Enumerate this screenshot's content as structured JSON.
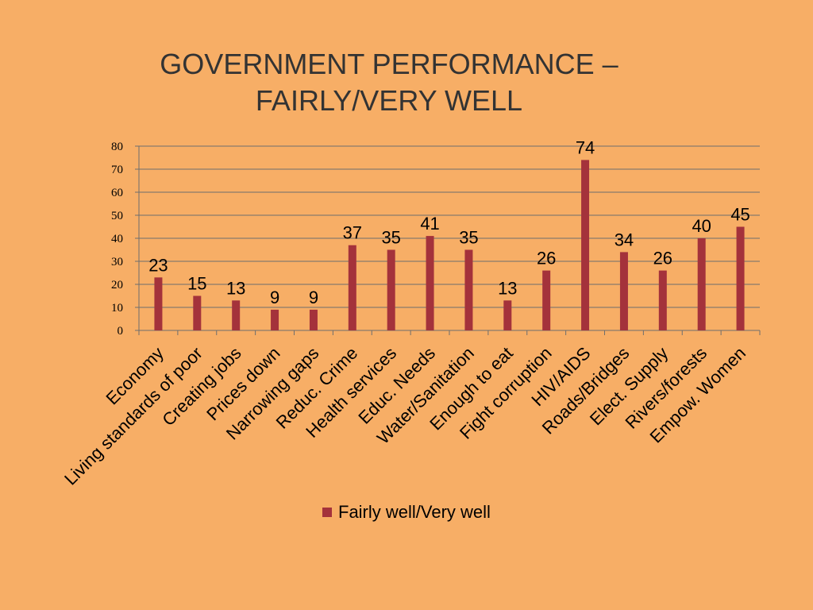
{
  "colors": {
    "background": "#F7AE66",
    "bar": "#A4323B",
    "grid": "#6E6E6E",
    "title": "#333333"
  },
  "title_line1": "GOVERNMENT PERFORMANCE –",
  "title_line2": "FAIRLY/VERY WELL",
  "chart_data": {
    "type": "bar",
    "title": "GOVERNMENT PERFORMANCE – FAIRLY/VERY WELL",
    "categories": [
      "Economy",
      "Living standards of poor",
      "Creating jobs",
      "Prices down",
      "Narrowing gaps",
      "Reduc. Crime",
      "Health services",
      "Educ. Needs",
      "Water/Sanitation",
      "Enough to eat",
      "Fight corruption",
      "HIV/AIDS",
      "Roads/Bridges",
      "Elect. Supply",
      "Rivers/forests",
      "Empow. Women"
    ],
    "series": [
      {
        "name": "Fairly well/Very well",
        "values": [
          23,
          15,
          13,
          9,
          9,
          37,
          35,
          41,
          35,
          13,
          26,
          74,
          34,
          26,
          40,
          45
        ]
      }
    ],
    "ylim": [
      0,
      80
    ],
    "yticks": [
      0,
      10,
      20,
      30,
      40,
      50,
      60,
      70,
      80
    ],
    "grid": true,
    "legend_position": "bottom",
    "data_labels": true
  }
}
